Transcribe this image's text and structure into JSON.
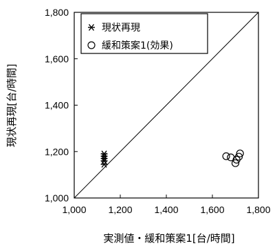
{
  "chart_data": {
    "type": "scatter",
    "xlabel": "実測値・緩和策案1[台/時間]",
    "ylabel": "現状再現[台/時間]",
    "xlim": [
      1000,
      1800
    ],
    "ylim": [
      1000,
      1800
    ],
    "x_ticks": [
      "1,000",
      "1,200",
      "1,400",
      "1,600",
      "1,800"
    ],
    "y_ticks": [
      "1,000",
      "1,200",
      "1,400",
      "1,600",
      "1,800"
    ],
    "legend_position": "top-left",
    "grid": false,
    "reference_line": "y = x",
    "series": [
      {
        "name": "現状再現",
        "marker": "asterisk",
        "points": [
          {
            "x": 1130,
            "y": 1145
          },
          {
            "x": 1130,
            "y": 1160
          },
          {
            "x": 1130,
            "y": 1170
          },
          {
            "x": 1130,
            "y": 1180
          },
          {
            "x": 1130,
            "y": 1190
          }
        ]
      },
      {
        "name": "緩和策案1(効果)",
        "marker": "circle",
        "points": [
          {
            "x": 1660,
            "y": 1180
          },
          {
            "x": 1680,
            "y": 1175
          },
          {
            "x": 1700,
            "y": 1150
          },
          {
            "x": 1705,
            "y": 1165
          },
          {
            "x": 1715,
            "y": 1178
          },
          {
            "x": 1720,
            "y": 1192
          }
        ]
      }
    ]
  }
}
